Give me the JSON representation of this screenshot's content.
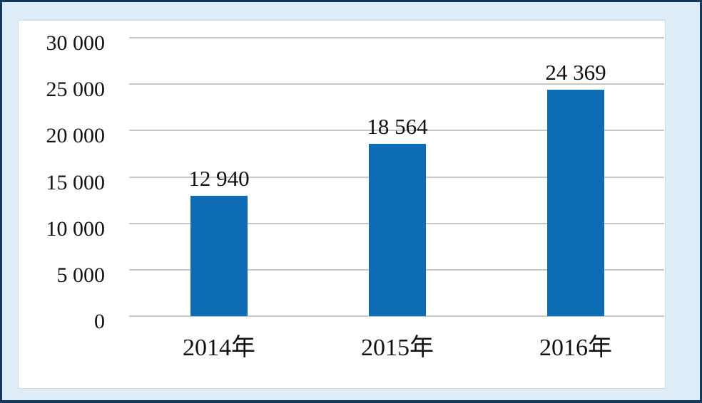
{
  "frame": {
    "border_color": "#14395E",
    "mat_color": "#DFEDF8",
    "panel_bg": "#FFFFFF",
    "panel_border": "#D6D6D6"
  },
  "chart_data": {
    "type": "bar",
    "title": "",
    "categories": [
      "2014年",
      "2015年",
      "2016年"
    ],
    "values": [
      12940,
      18564,
      24369
    ],
    "value_labels": [
      "12 940",
      "18 564",
      "24 369"
    ],
    "series": [
      {
        "name": "value",
        "values": [
          12940,
          18564,
          24369
        ]
      }
    ],
    "ylim": [
      0,
      30000
    ],
    "yticks": [
      0,
      5000,
      10000,
      15000,
      20000,
      25000,
      30000
    ],
    "ytick_labels": [
      "0",
      "5 000",
      "10 000",
      "15 000",
      "20 000",
      "25 000",
      "30 000"
    ],
    "xlabel": "",
    "ylabel": "",
    "grid": true,
    "legend_position": "none",
    "bar_color": "#0E6CB4",
    "gridline_color": "#C8C8C8",
    "text_color": "#111111"
  }
}
